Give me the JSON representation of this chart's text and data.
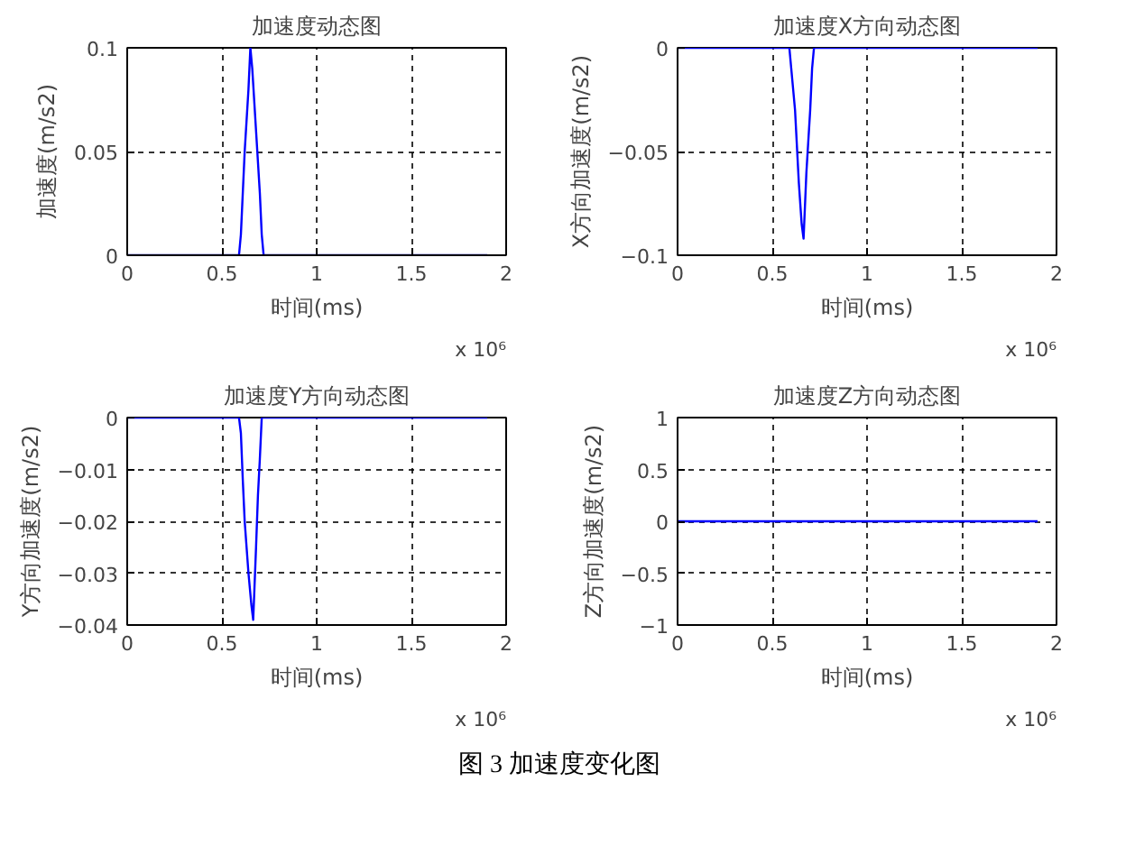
{
  "chart_data": [
    {
      "type": "line",
      "title": "加速度动态图",
      "xlabel": "时间(ms)",
      "ylabel": "加速度(m/s2)",
      "xlim": [
        0,
        2
      ],
      "ylim": [
        0,
        0.1
      ],
      "xticks": [
        0,
        0.5,
        1,
        1.5,
        2
      ],
      "yticks": [
        0,
        0.05,
        0.1
      ],
      "grid": true,
      "annotations": [
        "x 10⁶"
      ],
      "series": [
        {
          "color": "#0000ff",
          "x": [
            0,
            0.59,
            0.6,
            0.62,
            0.64,
            0.65,
            0.66,
            0.68,
            0.7,
            0.71,
            0.72,
            1.9
          ],
          "values": [
            0,
            0,
            0.01,
            0.05,
            0.08,
            0.1,
            0.09,
            0.06,
            0.03,
            0.01,
            0,
            0
          ]
        }
      ]
    },
    {
      "type": "line",
      "title": "加速度X方向动态图",
      "xlabel": "时间(ms)",
      "ylabel": "X方向加速度(m/s2)",
      "xlim": [
        0,
        2
      ],
      "ylim": [
        -0.1,
        0
      ],
      "xticks": [
        0,
        0.5,
        1,
        1.5,
        2
      ],
      "yticks": [
        -0.1,
        -0.05,
        0
      ],
      "grid": true,
      "annotations": [
        "x 10⁶"
      ],
      "series": [
        {
          "color": "#0000ff",
          "x": [
            0,
            0.59,
            0.6,
            0.62,
            0.64,
            0.655,
            0.665,
            0.68,
            0.7,
            0.71,
            0.72,
            1.9
          ],
          "values": [
            0,
            0,
            -0.01,
            -0.03,
            -0.065,
            -0.085,
            -0.092,
            -0.06,
            -0.03,
            -0.01,
            0,
            0
          ]
        }
      ]
    },
    {
      "type": "line",
      "title": "加速度Y方向动态图",
      "xlabel": "时间(ms)",
      "ylabel": "Y方向加速度(m/s2)",
      "xlim": [
        0,
        2
      ],
      "ylim": [
        -0.04,
        0
      ],
      "xticks": [
        0,
        0.5,
        1,
        1.5,
        2
      ],
      "yticks": [
        -0.04,
        -0.03,
        -0.02,
        -0.01,
        0
      ],
      "grid": true,
      "annotations": [
        "x 10⁶"
      ],
      "series": [
        {
          "color": "#0000ff",
          "x": [
            0,
            0.59,
            0.6,
            0.61,
            0.62,
            0.64,
            0.655,
            0.665,
            0.68,
            0.69,
            0.7,
            0.71,
            1.9
          ],
          "values": [
            0,
            0,
            -0.003,
            -0.012,
            -0.02,
            -0.03,
            -0.036,
            -0.039,
            -0.025,
            -0.015,
            -0.008,
            0,
            0
          ]
        }
      ]
    },
    {
      "type": "line",
      "title": "加速度Z方向动态图",
      "xlabel": "时间(ms)",
      "ylabel": "Z方向加速度(m/s2)",
      "xlim": [
        0,
        2
      ],
      "ylim": [
        -1,
        1
      ],
      "xticks": [
        0,
        0.5,
        1,
        1.5,
        2
      ],
      "yticks": [
        -1,
        -0.5,
        0,
        0.5,
        1
      ],
      "grid": true,
      "annotations": [
        "x 10⁶",
        "图 3 加速度变化图"
      ],
      "series": [
        {
          "color": "#0000ff",
          "x": [
            0,
            1.9
          ],
          "values": [
            0,
            0
          ]
        }
      ]
    }
  ]
}
